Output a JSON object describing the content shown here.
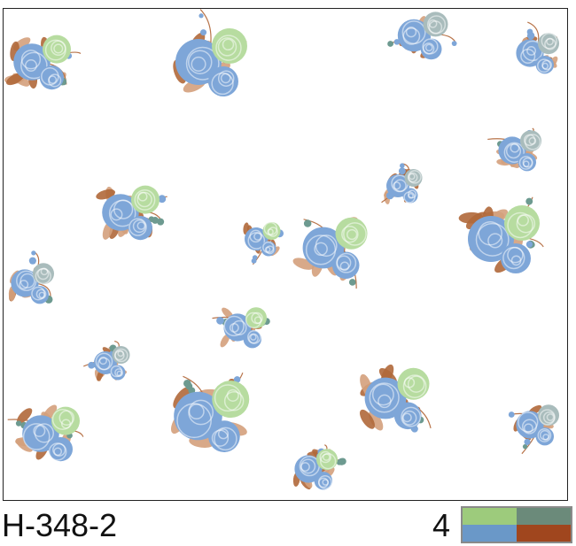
{
  "pattern_code": "H-348-2",
  "color_count": "4",
  "palette": {
    "light_green": "#9dcb7c",
    "gray_green": "#6b8a7a",
    "blue": "#6a98c8",
    "rust": "#a0461e"
  },
  "motif_colors": {
    "rose_blue": "#7ea6d8",
    "rose_gray": "#a9bcbc",
    "rose_green": "#b7dca0",
    "leaf_brown": "#b0683a",
    "leaf_light": "#d4a07c",
    "stem": "#b8744a",
    "bud_teal": "#6d9a90"
  }
}
